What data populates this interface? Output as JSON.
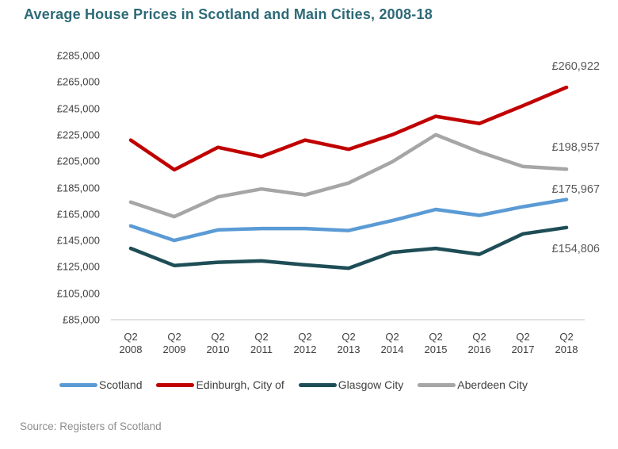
{
  "title": "Average House Prices in Scotland and Main Cities, 2008-18",
  "source": "Source: Registers of Scotland",
  "colors": {
    "title_text": "#2D6A77",
    "axis_text": "#404040",
    "data_label_text": "#595959",
    "axis_line": "#D9D9D9",
    "source_text": "#8C8C8C",
    "scotland": "#5B9BD5",
    "edinburgh": "#C00000",
    "glasgow": "#1E4D56",
    "aberdeen": "#A6A6A6"
  },
  "chart_data": {
    "type": "line",
    "title": "Average House Prices in Scotland and Main Cities, 2008-18",
    "categories": [
      "Q2 2008",
      "Q2 2009",
      "Q2 2010",
      "Q2 2011",
      "Q2 2012",
      "Q2 2013",
      "Q2 2014",
      "Q2 2015",
      "Q2 2016",
      "Q2 2017",
      "Q2 2018"
    ],
    "y_ticks": [
      "£285,000",
      "£265,000",
      "£245,000",
      "£225,000",
      "£205,000",
      "£185,000",
      "£165,000",
      "£145,000",
      "£125,000",
      "£105,000",
      "£85,000"
    ],
    "ylim": [
      85000,
      285000
    ],
    "xlabel": "",
    "ylabel": "",
    "grid": false,
    "legend_position": "bottom",
    "series": [
      {
        "name": "Scotland",
        "color": "#5B9BD5",
        "values": [
          156000,
          145000,
          153000,
          154000,
          154000,
          152500,
          160000,
          168500,
          164000,
          170500,
          175967
        ],
        "end_label": "£175,967"
      },
      {
        "name": "Edinburgh, City of",
        "color": "#C00000",
        "values": [
          221000,
          198500,
          215500,
          208500,
          221000,
          214000,
          225000,
          239000,
          233500,
          247000,
          260922
        ],
        "end_label": "£260,922"
      },
      {
        "name": "Glasgow City",
        "color": "#1E4D56",
        "values": [
          139000,
          126000,
          128500,
          129500,
          126500,
          124000,
          136000,
          139000,
          134500,
          150000,
          154806
        ],
        "end_label": "£154,806"
      },
      {
        "name": "Aberdeen City",
        "color": "#A6A6A6",
        "values": [
          174000,
          163000,
          178000,
          184000,
          179500,
          188500,
          204500,
          225000,
          212000,
          201000,
          198957
        ],
        "end_label": "£198,957"
      }
    ]
  }
}
